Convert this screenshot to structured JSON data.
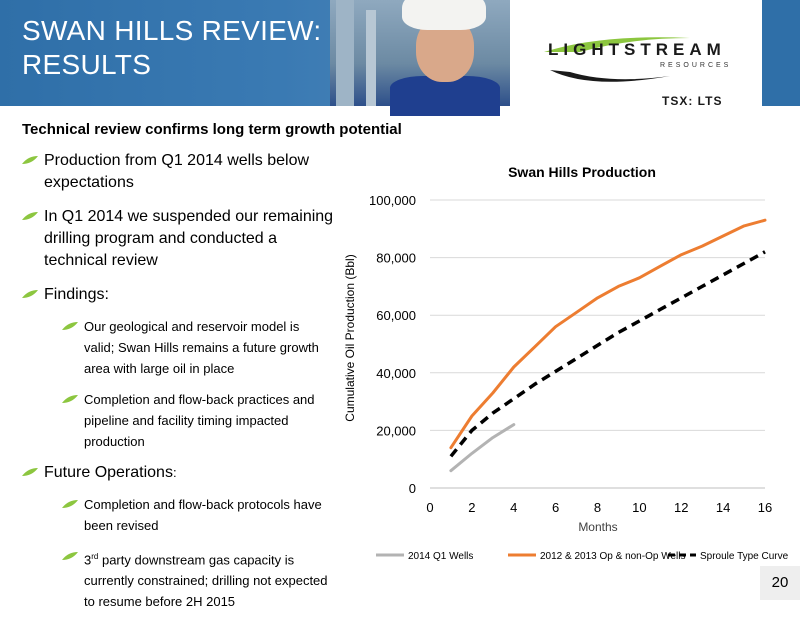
{
  "header": {
    "title_line1": "SWAN HILLS REVIEW:",
    "title_line2": "RESULTS",
    "logo_name": "LIGHTSTREAM",
    "logo_sub": "RESOURCES",
    "ticker": "TSX: LTS"
  },
  "subtitle": "Technical review confirms long term growth potential",
  "bullets": {
    "b1": "Production from Q1 2014 wells below expectations",
    "b2": "In Q1 2014 we suspended our remaining drilling program and conducted a technical review",
    "b3": "Findings:",
    "b3_1": "Our geological and reservoir model is valid; Swan Hills remains a future growth area with large oil in place",
    "b3_2": "Completion and flow-back practices and pipeline and facility timing impacted production",
    "b4": "Future Operations",
    "b4_colon": ":",
    "b4_1": "Completion and flow-back protocols have been revised",
    "b4_2_num": "3",
    "b4_2_sup": "rd",
    "b4_2_rest": " party downstream gas capacity is currently constrained; drilling not expected to resume before 2H 2015"
  },
  "page_number": "20",
  "colors": {
    "header_blue": "#2f6fa8",
    "leaf_green": "#8cc63f",
    "series_q1": "#b3b3b3",
    "series_op": "#ed7d31",
    "series_type": "#000000"
  },
  "chart_data": {
    "type": "line",
    "title": "Swan Hills Production",
    "xlabel": "Months",
    "ylabel": "Cumulative Oil Production (Bbl)",
    "xlim": [
      0,
      16
    ],
    "ylim": [
      0,
      100000
    ],
    "x_ticks": [
      "0",
      "2",
      "4",
      "6",
      "8",
      "10",
      "12",
      "14",
      "16"
    ],
    "y_ticks": [
      "0",
      "20,000",
      "40,000",
      "60,000",
      "80,000",
      "100,000"
    ],
    "grid": "horizontal",
    "legend": "bottom",
    "series": [
      {
        "name": "2014 Q1 Wells",
        "style": "solid",
        "x": [
          1,
          2,
          3,
          4
        ],
        "y": [
          6000,
          12000,
          17500,
          22000
        ]
      },
      {
        "name": "2012 & 2013 Op & non-Op Wells",
        "style": "solid",
        "x": [
          1,
          2,
          3,
          4,
          5,
          6,
          7,
          8,
          9,
          10,
          11,
          12,
          13,
          14,
          15,
          16
        ],
        "y": [
          14000,
          25000,
          33000,
          42000,
          49000,
          56000,
          61000,
          66000,
          70000,
          73000,
          77000,
          81000,
          84000,
          87500,
          91000,
          93000
        ]
      },
      {
        "name": "Sproule Type Curve",
        "style": "dashed",
        "x": [
          1,
          2,
          3,
          4,
          5,
          6,
          7,
          8,
          9,
          10,
          11,
          12,
          13,
          14,
          15,
          16
        ],
        "y": [
          11000,
          20000,
          26000,
          31000,
          36000,
          40500,
          45000,
          49500,
          54000,
          58000,
          62000,
          66000,
          70000,
          74000,
          78000,
          82000
        ]
      }
    ]
  }
}
